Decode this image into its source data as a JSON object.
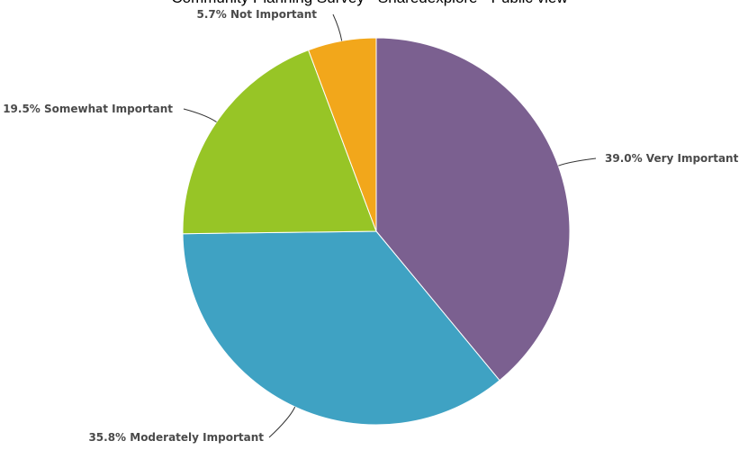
{
  "chart_data": {
    "type": "pie",
    "title": "Community Planning Survey - Sharedexplore - Public view",
    "series": [
      {
        "slices": [
          {
            "label": "Very Important",
            "display": "39.0% Very Important",
            "value": 39.0,
            "color": "#7b6090"
          },
          {
            "label": "Moderately Important",
            "display": "35.8% Moderately Important",
            "value": 35.8,
            "color": "#3fa2c3"
          },
          {
            "label": "Somewhat Important",
            "display": "19.5% Somewhat Important",
            "value": 19.5,
            "color": "#97c526"
          },
          {
            "label": "Not Important",
            "display": "5.7% Not Important",
            "value": 5.7,
            "color": "#f2a71b"
          }
        ]
      }
    ]
  }
}
